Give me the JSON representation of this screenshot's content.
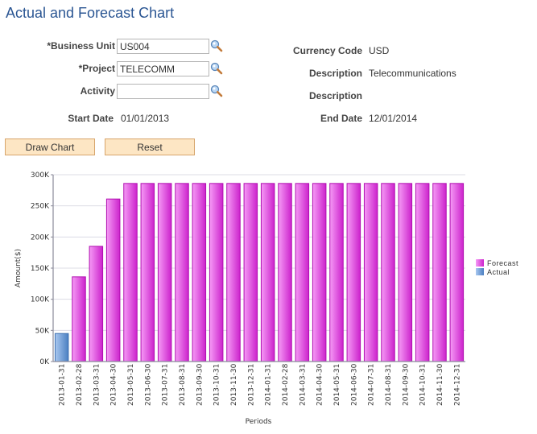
{
  "page": {
    "title": "Actual and Forecast Chart"
  },
  "form": {
    "business_unit": {
      "label": "*Business Unit",
      "value": "US004"
    },
    "project": {
      "label": "*Project",
      "value": "TELECOMM"
    },
    "activity": {
      "label": "Activity",
      "value": ""
    },
    "start_date": {
      "label": "Start Date",
      "value": "01/01/2013"
    },
    "currency_code": {
      "label": "Currency Code",
      "value": "USD"
    },
    "description1": {
      "label": "Description",
      "value": "Telecommunications"
    },
    "description2": {
      "label": "Description",
      "value": ""
    },
    "end_date": {
      "label": "End Date",
      "value": "12/01/2014"
    },
    "lookup_icon": "magnifier-icon"
  },
  "buttons": {
    "draw_chart": "Draw Chart",
    "reset": "Reset"
  },
  "colors": {
    "title": "#2b5693",
    "forecast": "#cc22cc",
    "forecast_light": "#f59af5",
    "actual": "#4a7fc1",
    "actual_light": "#a9c8f0",
    "button_bg": "#fde6c4",
    "button_border": "#d7a56b",
    "grid": "#dcdce4",
    "axis": "#8a8a9a"
  },
  "chart_data": {
    "type": "bar",
    "title": "",
    "xlabel": "Periods",
    "ylabel": "Amount($)",
    "ylim": [
      0,
      300000
    ],
    "yticks": [
      "0K",
      "50K",
      "100K",
      "150K",
      "200K",
      "250K",
      "300K"
    ],
    "grid": true,
    "legend_position": "right",
    "categories": [
      "2013-01-31",
      "2013-02-28",
      "2013-03-31",
      "2013-04-30",
      "2013-05-31",
      "2013-06-30",
      "2013-07-31",
      "2013-08-31",
      "2013-09-30",
      "2013-10-31",
      "2013-11-30",
      "2013-12-31",
      "2014-01-31",
      "2014-02-28",
      "2014-03-31",
      "2014-04-30",
      "2014-05-31",
      "2014-06-30",
      "2014-07-31",
      "2014-08-31",
      "2014-09-30",
      "2014-10-31",
      "2014-11-30",
      "2014-12-31"
    ],
    "series": [
      {
        "name": "Forecast",
        "values": [
          null,
          136000,
          185000,
          261000,
          286000,
          286000,
          286000,
          286000,
          286000,
          286000,
          286000,
          286000,
          286000,
          286000,
          286000,
          286000,
          286000,
          286000,
          286000,
          286000,
          286000,
          286000,
          286000,
          286000
        ]
      },
      {
        "name": "Actual",
        "values": [
          45000,
          null,
          null,
          null,
          null,
          null,
          null,
          null,
          null,
          null,
          null,
          null,
          null,
          null,
          null,
          null,
          null,
          null,
          null,
          null,
          null,
          null,
          null,
          null
        ]
      }
    ]
  }
}
